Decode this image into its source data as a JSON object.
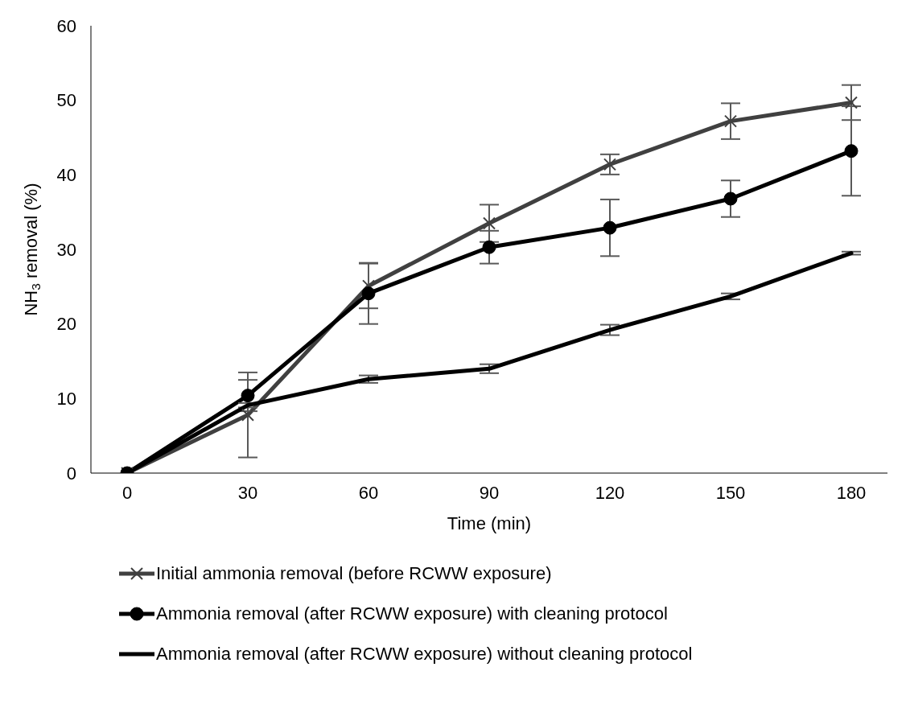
{
  "chart_data": {
    "type": "line",
    "xlabel": "Time (min)",
    "ylabel": "NH$_{3}$ removal (%)",
    "categories": [
      "0",
      "30",
      "60",
      "90",
      "120",
      "150",
      "180"
    ],
    "ylim": [
      0,
      60
    ],
    "yticks": [
      0,
      10,
      20,
      30,
      40,
      50,
      60
    ],
    "grid": false,
    "legend": "bottom",
    "line_style": "solid",
    "series": [
      {
        "name": "Initial ammonia removal (before RCWW exposure)",
        "color": "#404040",
        "marker": "cross",
        "values": [
          0,
          7.8,
          25.1,
          33.5,
          41.4,
          47.2,
          49.7
        ],
        "errors": [
          null,
          5.7,
          3,
          2.5,
          1.35,
          2.4,
          2.35
        ]
      },
      {
        "name": "Ammonia removal (after RCWW exposure) with cleaning protocol",
        "color": "#000000",
        "marker": "circle",
        "values": [
          0,
          10.4,
          24.1,
          30.3,
          32.9,
          36.8,
          43.2
        ],
        "errors": [
          null,
          2.1,
          4.1,
          2.2,
          3.8,
          2.45,
          6
        ]
      },
      {
        "name": "Ammonia removal (after RCWW exposure) without cleaning protocol",
        "color": "#000000",
        "marker": "none",
        "values": [
          0,
          9.1,
          12.6,
          14.0,
          19.2,
          23.7,
          29.5
        ],
        "errors": [
          null,
          0.3,
          0.5,
          0.6,
          0.7,
          0.4,
          0.2
        ]
      }
    ]
  }
}
